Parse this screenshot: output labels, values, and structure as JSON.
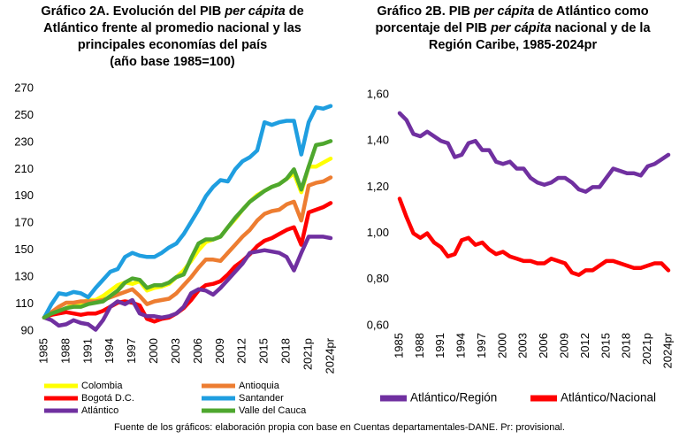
{
  "chart_data": [
    {
      "type": "line",
      "title": [
        {
          "text": "Gráfico 2A. Evolución del PIB ",
          "italic": false
        },
        {
          "text": "per cápita",
          "italic": true
        },
        {
          "text": " de Atlántico frente al promedio nacional y las principales economías del país",
          "italic": false
        }
      ],
      "subtitle": "(año base 1985=100)",
      "categories": [
        "1985",
        null,
        null,
        "1988",
        null,
        null,
        "1991",
        null,
        null,
        "1994",
        null,
        null,
        "1997",
        null,
        null,
        "2000",
        null,
        null,
        "2003",
        null,
        null,
        "2006",
        null,
        null,
        "2009",
        null,
        null,
        "2012",
        null,
        null,
        "2015",
        null,
        null,
        "2018",
        null,
        null,
        "2021p",
        null,
        null,
        "2024pr"
      ],
      "ylim": [
        90,
        270
      ],
      "yticks": [
        90,
        110,
        130,
        150,
        170,
        190,
        210,
        230,
        250,
        270
      ],
      "grid": false,
      "series": [
        {
          "name": "Colombia",
          "color": "#ffff00",
          "values": [
            100,
            102,
            104,
            107,
            110,
            111,
            113,
            113,
            116,
            120,
            124,
            126,
            125,
            127,
            120,
            122,
            123,
            125,
            130,
            135,
            142,
            150,
            156,
            158,
            160,
            167,
            173,
            180,
            186,
            191,
            194,
            197,
            199,
            203,
            207,
            193,
            212,
            212,
            215,
            218
          ]
        },
        {
          "name": "Antioquia",
          "color": "#ed7d31",
          "values": [
            100,
            104,
            108,
            111,
            111,
            112,
            112,
            112,
            113,
            115,
            117,
            119,
            121,
            116,
            110,
            112,
            113,
            114,
            118,
            124,
            130,
            137,
            143,
            143,
            142,
            148,
            154,
            160,
            165,
            172,
            177,
            179,
            180,
            184,
            186,
            172,
            198,
            200,
            201,
            204
          ]
        },
        {
          "name": "Bogotá D.C.",
          "color": "#ff0000",
          "values": [
            100,
            102,
            103,
            104,
            103,
            102,
            103,
            103,
            105,
            108,
            111,
            112,
            111,
            109,
            99,
            97,
            99,
            100,
            103,
            107,
            113,
            120,
            124,
            125,
            127,
            132,
            138,
            142,
            147,
            153,
            157,
            159,
            162,
            165,
            167,
            154,
            178,
            180,
            182,
            185
          ]
        },
        {
          "name": "Santander",
          "color": "#1f9ee0",
          "values": [
            100,
            110,
            118,
            117,
            119,
            118,
            115,
            122,
            128,
            134,
            136,
            145,
            148,
            146,
            145,
            145,
            148,
            152,
            155,
            162,
            171,
            180,
            190,
            197,
            202,
            201,
            210,
            216,
            219,
            224,
            245,
            243,
            245,
            246,
            246,
            221,
            245,
            256,
            255,
            257
          ]
        },
        {
          "name": "Atlántico",
          "color": "#7030a0",
          "values": [
            100,
            98,
            94,
            95,
            98,
            96,
            95,
            91,
            98,
            108,
            112,
            110,
            113,
            103,
            101,
            101,
            100,
            101,
            103,
            108,
            118,
            121,
            120,
            117,
            122,
            128,
            134,
            140,
            148,
            149,
            150,
            149,
            148,
            145,
            135,
            148,
            160,
            160,
            160,
            159
          ]
        },
        {
          "name": "Valle del Cauca",
          "color": "#4ea72e",
          "values": [
            100,
            103,
            105,
            107,
            108,
            108,
            110,
            111,
            112,
            116,
            120,
            126,
            129,
            128,
            122,
            124,
            124,
            126,
            130,
            132,
            144,
            155,
            158,
            158,
            160,
            167,
            174,
            180,
            186,
            190,
            194,
            197,
            199,
            203,
            210,
            195,
            212,
            228,
            229,
            231
          ]
        }
      ]
    },
    {
      "type": "line",
      "title": [
        {
          "text": "Gráfico 2B. PIB ",
          "italic": false
        },
        {
          "text": "per cápita",
          "italic": true
        },
        {
          "text": " de Atlántico como porcentaje del PIB ",
          "italic": false
        },
        {
          "text": "per cápita",
          "italic": true
        },
        {
          "text": " nacional y de la Región Caribe, 1985-2024pr",
          "italic": false
        }
      ],
      "categories": [
        "1985",
        null,
        null,
        "1988",
        null,
        null,
        "1991",
        null,
        null,
        "1994",
        null,
        null,
        "1997",
        null,
        null,
        "2000",
        null,
        null,
        "2003",
        null,
        null,
        "2006",
        null,
        null,
        "2009",
        null,
        null,
        "2012",
        null,
        null,
        "2015",
        null,
        null,
        "2018",
        null,
        null,
        "2021p",
        null,
        null,
        "2024pr"
      ],
      "ylim": [
        0.6,
        1.6
      ],
      "yticks": [
        {
          "value": 0.6,
          "label": "0,60"
        },
        {
          "value": 0.8,
          "label": "0,80"
        },
        {
          "value": 1.0,
          "label": "1,00"
        },
        {
          "value": 1.2,
          "label": "1,20"
        },
        {
          "value": 1.4,
          "label": "1,40"
        },
        {
          "value": 1.6,
          "label": "1,60"
        }
      ],
      "grid": false,
      "series": [
        {
          "name": "Atlántico/Región",
          "color": "#7030a0",
          "values": [
            1.52,
            1.49,
            1.43,
            1.42,
            1.44,
            1.42,
            1.4,
            1.39,
            1.33,
            1.34,
            1.39,
            1.4,
            1.36,
            1.36,
            1.31,
            1.3,
            1.31,
            1.28,
            1.28,
            1.24,
            1.22,
            1.21,
            1.22,
            1.24,
            1.24,
            1.22,
            1.19,
            1.18,
            1.2,
            1.2,
            1.24,
            1.28,
            1.27,
            1.26,
            1.26,
            1.25,
            1.29,
            1.3,
            1.32,
            1.34
          ]
        },
        {
          "name": "Atlántico/Nacional",
          "color": "#ff0000",
          "values": [
            1.15,
            1.07,
            1.0,
            0.98,
            1.0,
            0.96,
            0.94,
            0.9,
            0.91,
            0.97,
            0.98,
            0.95,
            0.96,
            0.93,
            0.91,
            0.92,
            0.9,
            0.89,
            0.88,
            0.88,
            0.87,
            0.87,
            0.89,
            0.88,
            0.87,
            0.83,
            0.82,
            0.84,
            0.84,
            0.86,
            0.88,
            0.88,
            0.87,
            0.86,
            0.85,
            0.85,
            0.86,
            0.87,
            0.87,
            0.84
          ]
        }
      ]
    }
  ],
  "footer": "Fuente de los gráficos: elaboración propia con base en Cuentas departamentales-DANE. Pr: provisional."
}
